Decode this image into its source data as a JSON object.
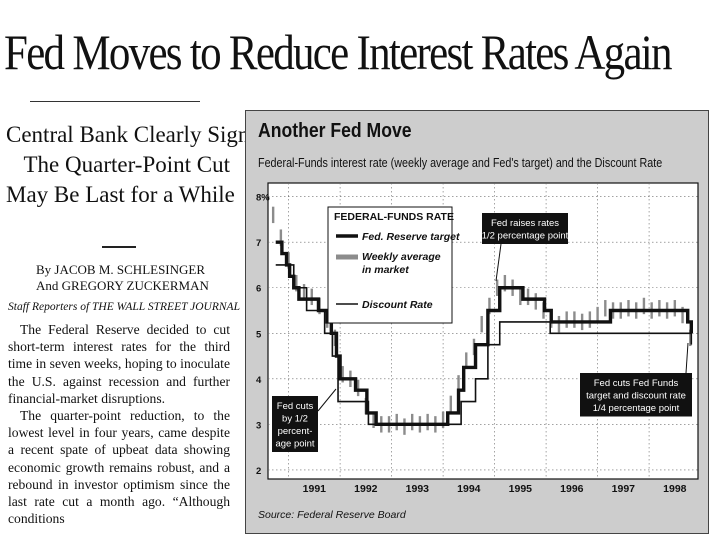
{
  "article": {
    "headline": "Fed Moves to Reduce Interest Rates Again",
    "subhead": [
      "Central Bank Clearly Signals",
      "The Quarter-Point Cut",
      "May Be Last for a While"
    ],
    "byline": [
      "By JACOB M. SCHLESINGER",
      "And GREGORY ZUCKERMAN"
    ],
    "staff_line": "Staff Reporters of THE WALL STREET JOURNAL",
    "paragraphs": [
      "The Federal Reserve decided to cut short-term interest rates for the third time in seven weeks, hoping to inoculate the U.S. against recession and further financial-market disruptions.",
      "The quarter-point reduction, to the lowest level in four years, came despite a recent spate of upbeat data showing economic growth remains robust, and a rebound in investor optimism since the last rate cut a month ago. “Although conditions"
    ]
  },
  "chart_data": {
    "type": "line",
    "title": "Another Fed Move",
    "subtitle": "Federal-Funds interest rate (weekly average and Fed's target) and the Discount Rate",
    "x_tick_labels": [
      "1991",
      "1992",
      "1993",
      "1994",
      "1995",
      "1996",
      "1997",
      "1998"
    ],
    "y_tick_labels": [
      "8%",
      "7",
      "6",
      "5",
      "4",
      "3",
      "2"
    ],
    "xlim": [
      1990.6,
      1998.95
    ],
    "ylim": [
      1.8,
      8.3
    ],
    "grid": true,
    "legend": {
      "title": "FEDERAL-FUNDS RATE",
      "placement": "top-left",
      "entries": [
        "Fed. Reserve target",
        "Weekly average in market",
        "Discount Rate"
      ]
    },
    "series": [
      {
        "name": "Fed. Reserve target",
        "style": "thick-step",
        "x": [
          1990.75,
          1990.87,
          1990.96,
          1991.02,
          1991.1,
          1991.2,
          1991.35,
          1991.58,
          1991.75,
          1991.83,
          1991.93,
          1992.0,
          1992.3,
          1992.52,
          1992.7,
          1993.9,
          1994.09,
          1994.3,
          1994.4,
          1994.63,
          1994.87,
          1995.1,
          1995.55,
          1995.97,
          1996.1,
          1997.25,
          1998.0,
          1998.75,
          1998.82
        ],
        "y": [
          7.0,
          6.75,
          6.5,
          6.25,
          6.0,
          5.75,
          5.75,
          5.5,
          5.25,
          5.0,
          4.5,
          4.0,
          3.75,
          3.25,
          3.0,
          3.0,
          3.25,
          3.75,
          4.25,
          4.75,
          5.5,
          6.0,
          5.75,
          5.5,
          5.25,
          5.5,
          5.5,
          5.25,
          5.0
        ]
      },
      {
        "name": "Weekly average in market",
        "style": "bars",
        "x": [
          1990.7,
          1990.85,
          1991.0,
          1991.15,
          1991.3,
          1991.45,
          1991.6,
          1991.75,
          1991.9,
          1992.05,
          1992.2,
          1992.35,
          1992.5,
          1992.65,
          1992.8,
          1992.95,
          1993.1,
          1993.25,
          1993.4,
          1993.55,
          1993.7,
          1993.85,
          1994.0,
          1994.15,
          1994.3,
          1994.45,
          1994.6,
          1994.75,
          1994.9,
          1995.05,
          1995.2,
          1995.35,
          1995.5,
          1995.65,
          1995.8,
          1995.95,
          1996.1,
          1996.25,
          1996.4,
          1996.55,
          1996.7,
          1996.85,
          1997.0,
          1997.15,
          1997.3,
          1997.45,
          1997.6,
          1997.75,
          1997.9,
          1998.05,
          1998.2,
          1998.35,
          1998.5,
          1998.65,
          1998.8
        ],
        "y": [
          7.6,
          7.1,
          6.6,
          6.1,
          5.9,
          5.8,
          5.6,
          5.3,
          4.9,
          4.1,
          4.0,
          3.8,
          3.4,
          3.1,
          3.0,
          3.0,
          3.05,
          2.95,
          3.05,
          3.0,
          3.05,
          3.0,
          3.1,
          3.45,
          3.9,
          4.4,
          4.7,
          5.2,
          5.6,
          6.0,
          6.1,
          6.0,
          5.8,
          5.8,
          5.7,
          5.5,
          5.3,
          5.2,
          5.3,
          5.3,
          5.25,
          5.3,
          5.4,
          5.55,
          5.5,
          5.5,
          5.55,
          5.5,
          5.6,
          5.5,
          5.55,
          5.5,
          5.55,
          5.4,
          4.9
        ]
      },
      {
        "name": "Discount Rate",
        "style": "thin-step",
        "x": [
          1990.75,
          1990.95,
          1991.1,
          1991.35,
          1991.7,
          1991.85,
          1991.96,
          1992.55,
          1994.35,
          1994.63,
          1994.87,
          1995.1,
          1996.08,
          1998.82
        ],
        "y": [
          6.5,
          6.5,
          6.0,
          5.5,
          5.0,
          4.5,
          3.5,
          3.0,
          3.5,
          4.0,
          4.75,
          5.25,
          5.0,
          4.75
        ]
      }
    ],
    "annotations": [
      [
        "Fed raises rates",
        "1/2 percentage point"
      ],
      [
        "Fed cuts",
        "by 1/2",
        "percent-",
        "age point"
      ],
      [
        "Fed cuts Fed Funds",
        "target and discount rate",
        "1/4 percentage point"
      ]
    ],
    "source": "Source: Federal Reserve Board",
    "colors": {
      "panel": "#cdcdcd",
      "plot": "#ffffff",
      "ink": "#111111",
      "bars": "#8c8c8c",
      "grid": "#6a6a6a"
    }
  }
}
